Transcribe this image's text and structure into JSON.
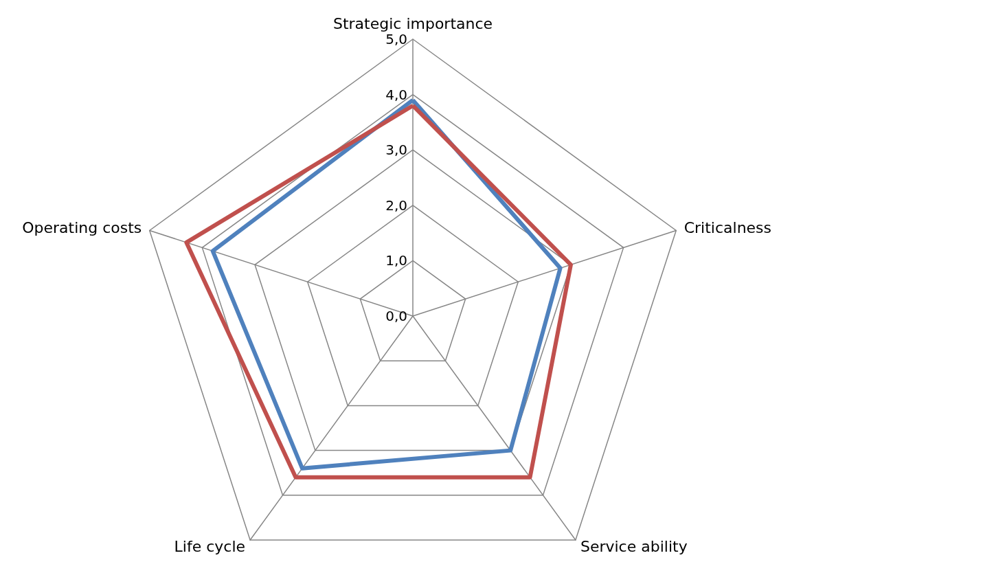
{
  "chart_data": {
    "type": "radar",
    "categories": [
      "Strategic importance",
      "Criticalness",
      "Service ability",
      "Life cycle",
      "Operating costs"
    ],
    "ylim": [
      0,
      5
    ],
    "yticks": [
      {
        "value": 0,
        "label": "0,0"
      },
      {
        "value": 1,
        "label": "1,0"
      },
      {
        "value": 2,
        "label": "2,0"
      },
      {
        "value": 3,
        "label": "3,0"
      },
      {
        "value": 4,
        "label": "4,0"
      },
      {
        "value": 5,
        "label": "5,0"
      }
    ],
    "series": [
      {
        "color": "#4f81bd",
        "values": [
          3.9,
          2.8,
          3.0,
          3.4,
          3.8
        ]
      },
      {
        "color": "#c0504d",
        "values": [
          3.8,
          3.0,
          3.6,
          3.6,
          4.3
        ]
      }
    ],
    "line_style": "solid",
    "marker": "none"
  }
}
